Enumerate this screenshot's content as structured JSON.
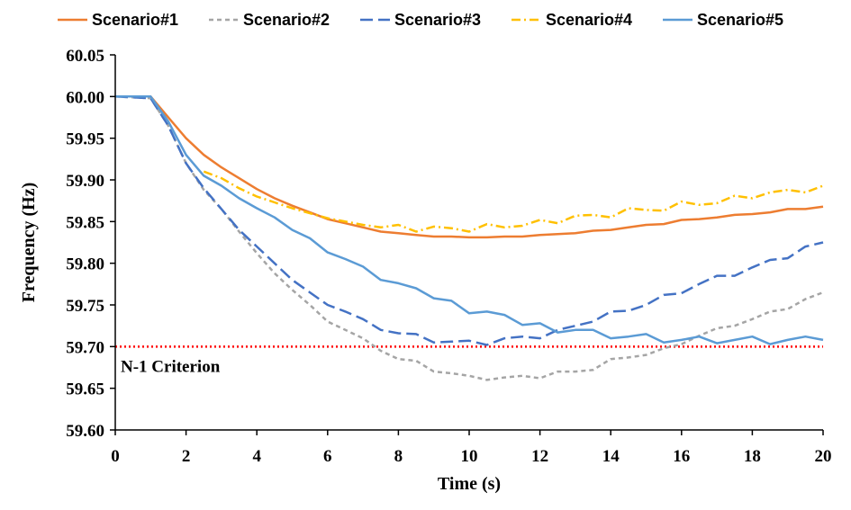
{
  "chart_data": {
    "type": "line",
    "xlabel": "Time (s)",
    "ylabel": "Frequency (Hz)",
    "xlim": [
      0,
      20
    ],
    "ylim": [
      59.6,
      60.05
    ],
    "xticks": [
      0,
      2,
      4,
      6,
      8,
      10,
      12,
      14,
      16,
      18,
      20
    ],
    "yticks": [
      59.6,
      59.65,
      59.7,
      59.75,
      59.8,
      59.85,
      59.9,
      59.95,
      60.0,
      60.05
    ],
    "ytick_labels": [
      "59.60",
      "59.65",
      "59.70",
      "59.75",
      "59.80",
      "59.85",
      "59.90",
      "59.95",
      "60.00",
      "60.05"
    ],
    "grid": false,
    "legend_position": "top",
    "series": [
      {
        "name": "Scenario#1",
        "color": "#ED7D31",
        "dash": "solid",
        "points": [
          [
            0,
            60.0
          ],
          [
            1,
            60.0
          ],
          [
            1.5,
            59.975
          ],
          [
            2,
            59.95
          ],
          [
            2.5,
            59.93
          ],
          [
            3,
            59.915
          ],
          [
            3.5,
            59.902
          ],
          [
            4,
            59.889
          ],
          [
            4.5,
            59.878
          ],
          [
            5,
            59.869
          ],
          [
            5.5,
            59.861
          ],
          [
            6,
            59.853
          ],
          [
            6.5,
            59.848
          ],
          [
            7,
            59.843
          ],
          [
            7.5,
            59.838
          ],
          [
            8,
            59.836
          ],
          [
            8.5,
            59.834
          ],
          [
            9,
            59.832
          ],
          [
            9.5,
            59.832
          ],
          [
            10,
            59.831
          ],
          [
            10.5,
            59.831
          ],
          [
            11,
            59.832
          ],
          [
            11.5,
            59.832
          ],
          [
            12,
            59.834
          ],
          [
            12.5,
            59.835
          ],
          [
            13,
            59.836
          ],
          [
            13.5,
            59.839
          ],
          [
            14,
            59.84
          ],
          [
            14.5,
            59.843
          ],
          [
            15,
            59.846
          ],
          [
            15.5,
            59.847
          ],
          [
            16,
            59.852
          ],
          [
            16.5,
            59.853
          ],
          [
            17,
            59.855
          ],
          [
            17.5,
            59.858
          ],
          [
            18,
            59.859
          ],
          [
            18.5,
            59.861
          ],
          [
            19,
            59.865
          ],
          [
            19.5,
            59.865
          ],
          [
            20,
            59.868
          ]
        ]
      },
      {
        "name": "Scenario#2",
        "color": "#A5A5A5",
        "dash": "dashed",
        "points": [
          [
            0,
            60.0
          ],
          [
            1,
            59.998
          ],
          [
            1.5,
            59.965
          ],
          [
            2,
            59.92
          ],
          [
            2.5,
            59.888
          ],
          [
            3,
            59.865
          ],
          [
            3.5,
            59.838
          ],
          [
            4,
            59.812
          ],
          [
            4.5,
            59.788
          ],
          [
            5,
            59.768
          ],
          [
            5.5,
            59.75
          ],
          [
            6,
            59.73
          ],
          [
            6.5,
            59.72
          ],
          [
            7,
            59.71
          ],
          [
            7.5,
            59.695
          ],
          [
            8,
            59.685
          ],
          [
            8.5,
            59.683
          ],
          [
            9,
            59.67
          ],
          [
            9.5,
            59.668
          ],
          [
            10,
            59.665
          ],
          [
            10.5,
            59.66
          ],
          [
            11,
            59.663
          ],
          [
            11.5,
            59.665
          ],
          [
            12,
            59.662
          ],
          [
            12.5,
            59.67
          ],
          [
            13,
            59.67
          ],
          [
            13.5,
            59.672
          ],
          [
            14,
            59.685
          ],
          [
            14.5,
            59.687
          ],
          [
            15,
            59.69
          ],
          [
            15.5,
            59.698
          ],
          [
            16,
            59.703
          ],
          [
            16.5,
            59.713
          ],
          [
            17,
            59.722
          ],
          [
            17.5,
            59.725
          ],
          [
            18,
            59.733
          ],
          [
            18.5,
            59.742
          ],
          [
            19,
            59.745
          ],
          [
            19.5,
            59.757
          ],
          [
            20,
            59.765
          ]
        ]
      },
      {
        "name": "Scenario#3",
        "color": "#4472C4",
        "dash": "longdash",
        "points": [
          [
            0,
            60.0
          ],
          [
            1,
            59.998
          ],
          [
            1.5,
            59.965
          ],
          [
            2,
            59.92
          ],
          [
            2.5,
            59.89
          ],
          [
            3,
            59.865
          ],
          [
            3.5,
            59.84
          ],
          [
            4,
            59.82
          ],
          [
            4.5,
            59.8
          ],
          [
            5,
            59.78
          ],
          [
            5.5,
            59.765
          ],
          [
            6,
            59.75
          ],
          [
            6.5,
            59.742
          ],
          [
            7,
            59.733
          ],
          [
            7.5,
            59.72
          ],
          [
            8,
            59.716
          ],
          [
            8.5,
            59.715
          ],
          [
            9,
            59.705
          ],
          [
            9.5,
            59.706
          ],
          [
            10,
            59.707
          ],
          [
            10.5,
            59.702
          ],
          [
            11,
            59.71
          ],
          [
            11.5,
            59.712
          ],
          [
            12,
            59.71
          ],
          [
            12.5,
            59.72
          ],
          [
            13,
            59.725
          ],
          [
            13.5,
            59.73
          ],
          [
            14,
            59.742
          ],
          [
            14.5,
            59.743
          ],
          [
            15,
            59.75
          ],
          [
            15.5,
            59.762
          ],
          [
            16,
            59.764
          ],
          [
            16.5,
            59.775
          ],
          [
            17,
            59.785
          ],
          [
            17.5,
            59.785
          ],
          [
            18,
            59.795
          ],
          [
            18.5,
            59.804
          ],
          [
            19,
            59.806
          ],
          [
            19.5,
            59.82
          ],
          [
            20,
            59.825
          ]
        ]
      },
      {
        "name": "Scenario#4",
        "color": "#FFC000",
        "dash": "dashdot",
        "points": [
          [
            2.5,
            59.91
          ],
          [
            3,
            59.902
          ],
          [
            3.5,
            59.89
          ],
          [
            4,
            59.88
          ],
          [
            4.5,
            59.873
          ],
          [
            5,
            59.866
          ],
          [
            5.5,
            59.86
          ],
          [
            6,
            59.854
          ],
          [
            6.5,
            59.85
          ],
          [
            7,
            59.846
          ],
          [
            7.5,
            59.843
          ],
          [
            8,
            59.846
          ],
          [
            8.5,
            59.838
          ],
          [
            9,
            59.844
          ],
          [
            9.5,
            59.842
          ],
          [
            10,
            59.838
          ],
          [
            10.5,
            59.847
          ],
          [
            11,
            59.843
          ],
          [
            11.5,
            59.845
          ],
          [
            12,
            59.852
          ],
          [
            12.5,
            59.848
          ],
          [
            13,
            59.857
          ],
          [
            13.5,
            59.858
          ],
          [
            14,
            59.855
          ],
          [
            14.5,
            59.866
          ],
          [
            15,
            59.864
          ],
          [
            15.5,
            59.863
          ],
          [
            16,
            59.874
          ],
          [
            16.5,
            59.87
          ],
          [
            17,
            59.872
          ],
          [
            17.5,
            59.881
          ],
          [
            18,
            59.878
          ],
          [
            18.5,
            59.885
          ],
          [
            19,
            59.888
          ],
          [
            19.5,
            59.885
          ],
          [
            20,
            59.893
          ]
        ]
      },
      {
        "name": "Scenario#5",
        "color": "#5B9BD5",
        "dash": "solid",
        "points": [
          [
            0,
            60.0
          ],
          [
            1,
            60.0
          ],
          [
            1.5,
            59.97
          ],
          [
            2,
            59.93
          ],
          [
            2.5,
            59.905
          ],
          [
            3,
            59.893
          ],
          [
            3.5,
            59.878
          ],
          [
            4,
            59.866
          ],
          [
            4.5,
            59.855
          ],
          [
            5,
            59.84
          ],
          [
            5.5,
            59.83
          ],
          [
            6,
            59.813
          ],
          [
            6.5,
            59.805
          ],
          [
            7,
            59.796
          ],
          [
            7.5,
            59.78
          ],
          [
            8,
            59.776
          ],
          [
            8.5,
            59.77
          ],
          [
            9,
            59.758
          ],
          [
            9.5,
            59.755
          ],
          [
            10,
            59.74
          ],
          [
            10.5,
            59.742
          ],
          [
            11,
            59.738
          ],
          [
            11.5,
            59.726
          ],
          [
            12,
            59.728
          ],
          [
            12.5,
            59.717
          ],
          [
            13,
            59.72
          ],
          [
            13.5,
            59.72
          ],
          [
            14,
            59.71
          ],
          [
            14.5,
            59.712
          ],
          [
            15,
            59.715
          ],
          [
            15.5,
            59.705
          ],
          [
            16,
            59.708
          ],
          [
            16.5,
            59.712
          ],
          [
            17,
            59.704
          ],
          [
            17.5,
            59.708
          ],
          [
            18,
            59.712
          ],
          [
            18.5,
            59.703
          ],
          [
            19,
            59.708
          ],
          [
            19.5,
            59.712
          ],
          [
            20,
            59.708
          ]
        ]
      }
    ],
    "reference_line": {
      "label": "N-1 Criterion",
      "y": 59.7,
      "color": "#FF0000",
      "dash": "dotted"
    }
  }
}
